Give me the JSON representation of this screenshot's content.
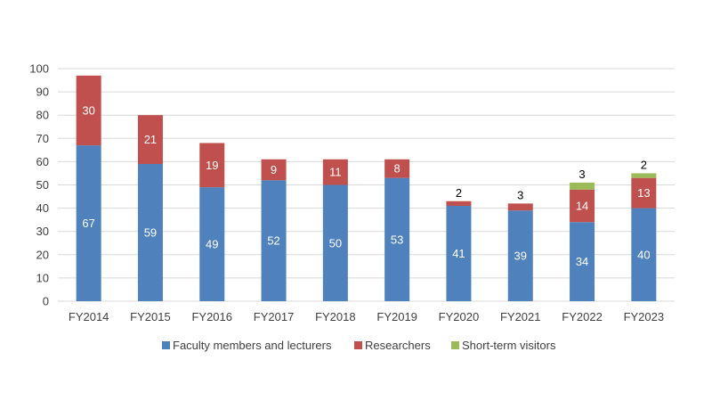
{
  "chart_data": {
    "type": "bar",
    "stacked": true,
    "categories": [
      "FY2014",
      "FY2015",
      "FY2016",
      "FY2017",
      "FY2018",
      "FY2019",
      "FY2020",
      "FY2021",
      "FY2022",
      "FY2023"
    ],
    "series": [
      {
        "name": "Faculty members and lecturers",
        "color": "#4F81BD",
        "values": [
          67,
          59,
          49,
          52,
          50,
          53,
          41,
          39,
          34,
          40
        ]
      },
      {
        "name": "Researchers",
        "color": "#C0504D",
        "values": [
          30,
          21,
          19,
          9,
          11,
          8,
          2,
          3,
          14,
          13
        ]
      },
      {
        "name": "Short-term visitors",
        "color": "#9BBB59",
        "values": [
          0,
          0,
          0,
          0,
          0,
          0,
          0,
          0,
          3,
          2
        ]
      }
    ],
    "ylim": [
      0,
      100
    ],
    "yticks": [
      0,
      10,
      20,
      30,
      40,
      50,
      60,
      70,
      80,
      90,
      100
    ],
    "grid": true,
    "legend_position": "bottom"
  }
}
